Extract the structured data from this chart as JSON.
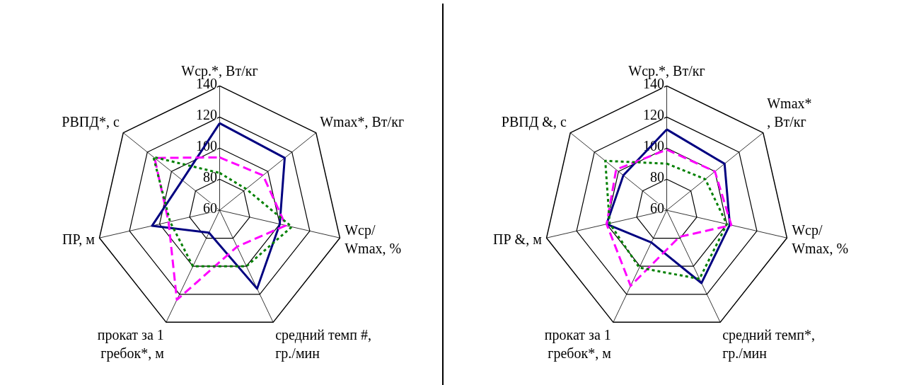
{
  "chart_data": [
    {
      "type": "radar",
      "categories": [
        "Wср.*, Вт/кг",
        "Wmax*, Вт/кг",
        "Wср/\nWmax, %",
        "средний темп #,\nгр./мин",
        "прокат за 1\nгребок*, м",
        "ПР, м",
        "РВПД*, с"
      ],
      "ylim": [
        60,
        140
      ],
      "yticks": [
        60,
        80,
        100,
        120,
        140
      ],
      "grid": true,
      "series": [
        {
          "color": "#000080",
          "line_style": "solid",
          "values": [
            116,
            114,
            100,
            116,
            76,
            105,
            91
          ]
        },
        {
          "color": "#ff00ff",
          "line_style": "dashed",
          "values": [
            94,
            96,
            104,
            86,
            124,
            94,
            114
          ]
        },
        {
          "color": "#008000",
          "line_style": "dotted",
          "values": [
            84,
            82,
            108,
            100,
            100,
            93,
            115
          ]
        }
      ]
    },
    {
      "type": "radar",
      "categories": [
        "Wср.*, Вт/кг",
        "Wmax*\n, Вт/кг",
        "Wср/\nWmax, %",
        "средний темп*,\nгр./мин",
        "прокат за 1\nгребок*, м",
        "ПР &, м",
        "РВПД &, с"
      ],
      "ylim": [
        60,
        140
      ],
      "yticks": [
        60,
        80,
        100,
        120,
        140
      ],
      "grid": true,
      "series": [
        {
          "color": "#000080",
          "line_style": "solid",
          "values": [
            112,
            108,
            102,
            112,
            83,
            100,
            96
          ]
        },
        {
          "color": "#ff00ff",
          "line_style": "dashed",
          "values": [
            99,
            100,
            103,
            79,
            114,
            100,
            102
          ]
        },
        {
          "color": "#008000",
          "line_style": "dotted",
          "values": [
            90,
            92,
            100,
            109,
            101,
            98,
            111
          ]
        }
      ]
    }
  ]
}
